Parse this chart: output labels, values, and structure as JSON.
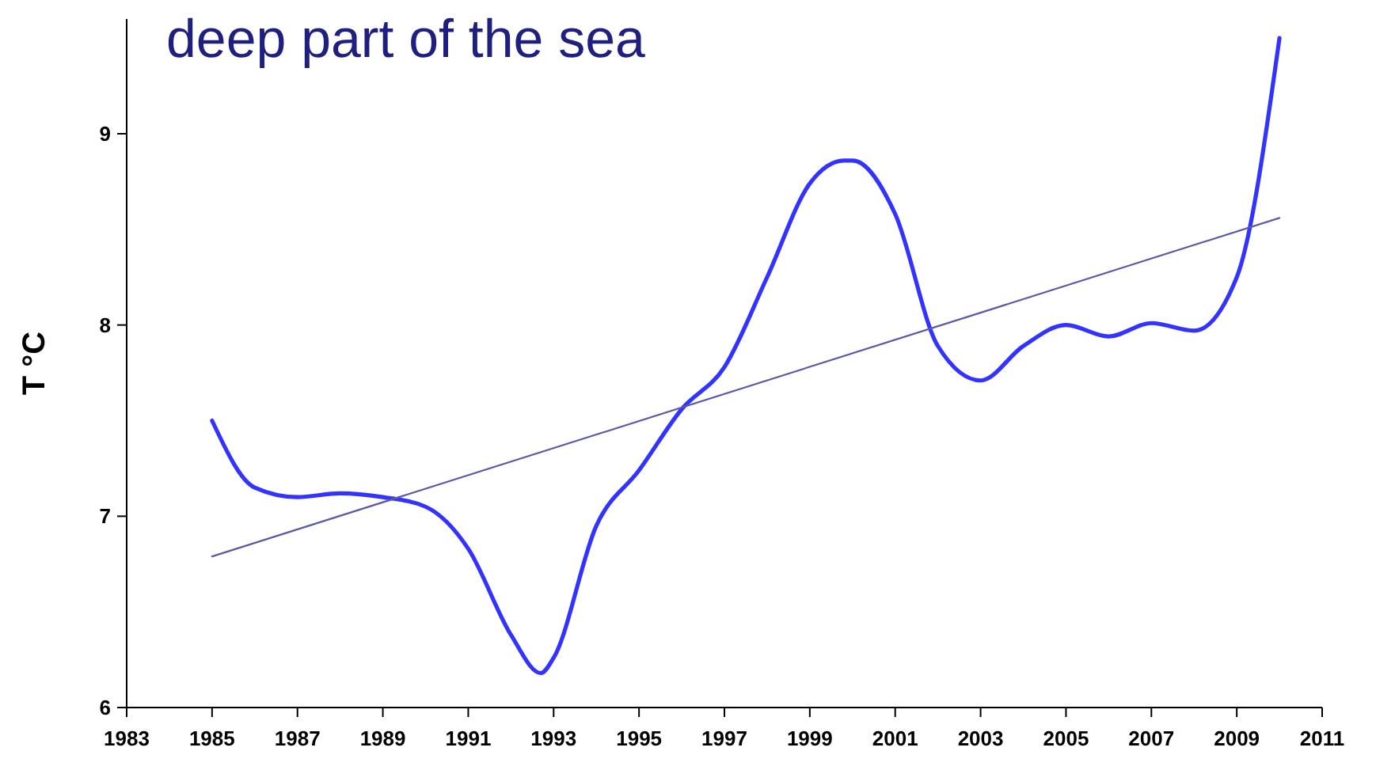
{
  "chart_data": {
    "type": "line",
    "title": "deep part of the sea",
    "ylabel": "T °C",
    "xlim": [
      1983,
      2011
    ],
    "xticks": [
      1983,
      1985,
      1987,
      1989,
      1991,
      1993,
      1995,
      1997,
      1999,
      2001,
      2003,
      2005,
      2007,
      2009,
      2011
    ],
    "ylim": [
      6,
      9.6
    ],
    "yticks": [
      6,
      7,
      8,
      9
    ],
    "grid": false,
    "marker": "none",
    "series": [
      {
        "color": "#3333ff",
        "x": [
          1985,
          1986,
          1987,
          1988,
          1989,
          1990,
          1991,
          1992,
          1992.7,
          1993,
          1994,
          1995,
          1996,
          1997,
          1998,
          1999,
          1999.8,
          2000,
          2001,
          2002,
          2003,
          2004,
          2005,
          2006,
          2007,
          2008,
          2009,
          2010
        ],
        "values": [
          7.5,
          7.15,
          7.1,
          7.12,
          7.1,
          7.05,
          6.83,
          6.38,
          6.18,
          6.26,
          6.95,
          7.24,
          7.56,
          7.78,
          8.25,
          8.74,
          8.86,
          8.86,
          8.58,
          7.89,
          7.71,
          7.89,
          8.0,
          7.94,
          8.01,
          7.97,
          8.25,
          9.5
        ]
      },
      {
        "type": "line",
        "color": "#5a5aa8",
        "x": [
          1985,
          2010
        ],
        "values": [
          6.79,
          8.56
        ]
      }
    ]
  }
}
